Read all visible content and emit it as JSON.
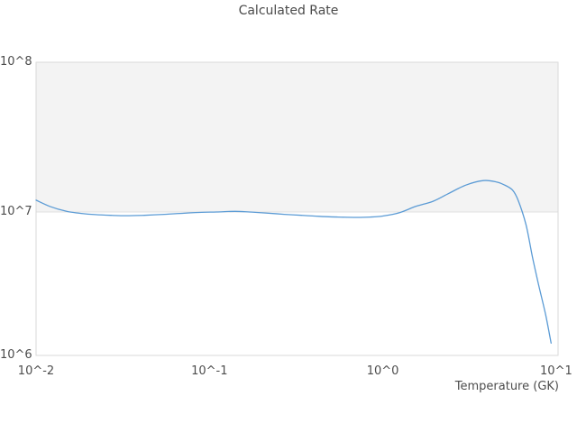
{
  "title": "Calculated Rate",
  "x_axis": {
    "label": "Temperature (GK)",
    "scale": "log",
    "ticks": [
      {
        "label": "10^-2",
        "value": 0.01
      },
      {
        "label": "10^-1",
        "value": 0.1
      },
      {
        "label": "10^0",
        "value": 1
      },
      {
        "label": "10^1",
        "value": 10
      }
    ]
  },
  "y_axis": {
    "label": "",
    "scale": "log",
    "ticks": [
      {
        "label": "10^6",
        "value": 1000000
      },
      {
        "label": "10^7",
        "value": 10000000
      },
      {
        "label": "10^8",
        "value": 100000000
      }
    ]
  },
  "chart_data": {
    "type": "line",
    "title": "Calculated Rate",
    "xlabel": "Temperature (GK)",
    "ylabel": "",
    "x_scale": "log",
    "y_scale": "log",
    "xlim": [
      0.01,
      10
    ],
    "ylim": [
      1000000,
      100000000
    ],
    "legend": "none",
    "grid": "horizontal major gridline at 1e7; decade band 1e7-1e8 shaded light gray, 1e6-1e7 white",
    "series": [
      {
        "name": "Calculated Rate",
        "color": "#5b9bd5",
        "x": [
          0.01,
          0.012,
          0.015,
          0.018,
          0.022,
          0.027,
          0.033,
          0.042,
          0.055,
          0.07,
          0.09,
          0.11,
          0.14,
          0.17,
          0.21,
          0.27,
          0.34,
          0.43,
          0.55,
          0.7,
          0.85,
          1.0,
          1.25,
          1.55,
          1.95,
          2.4,
          3.0,
          3.8,
          4.5,
          5.0,
          5.6,
          6.05,
          6.7,
          7.3,
          7.9,
          8.7,
          9.35
        ],
        "y": [
          12000000,
          10900000,
          10100000,
          9800000,
          9600000,
          9500000,
          9450000,
          9500000,
          9650000,
          9800000,
          9950000,
          10000000,
          10100000,
          10000000,
          9850000,
          9650000,
          9500000,
          9350000,
          9250000,
          9200000,
          9250000,
          9400000,
          9900000,
          10900000,
          11800000,
          13300000,
          15100000,
          16200000,
          15900000,
          15200000,
          14000000,
          11900000,
          8200000,
          5000000,
          3300000,
          2050000,
          1330000
        ]
      }
    ]
  },
  "colors": {
    "curve": "#5b9bd5",
    "band": "#f3f3f3",
    "gridline": "#e0e0e0",
    "plot_border": "#d9d9d9",
    "text": "#4d4d4d",
    "background": "#ffffff"
  }
}
